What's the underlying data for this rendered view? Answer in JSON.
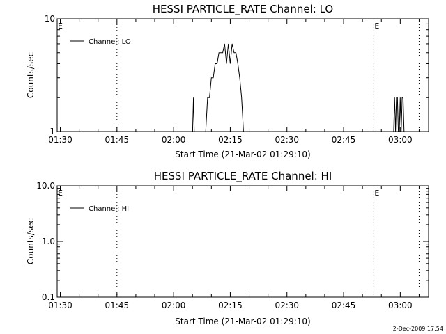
{
  "chart_data": [
    {
      "type": "line",
      "title": "HESSI PARTICLE_RATE Channel: LO",
      "xlabel": "Start Time (21-Mar-02 01:29:10)",
      "ylabel": "Counts/sec",
      "yscale": "log",
      "ylim": [
        1,
        10
      ],
      "xlim": [
        "01:29:10",
        "03:07:30"
      ],
      "x_ticks": [
        "01:30",
        "01:45",
        "02:00",
        "02:15",
        "02:30",
        "02:45",
        "03:00"
      ],
      "y_ticks": [
        "1",
        "10"
      ],
      "legend": {
        "position": "top-left",
        "entries": [
          "Channel: LO"
        ]
      },
      "markers": [
        {
          "label": "E",
          "time": "01:29:10"
        },
        {
          "label": "",
          "time": "01:45:00"
        },
        {
          "label": "E",
          "time": "02:53:00"
        },
        {
          "label": "",
          "time": "03:05:00"
        }
      ],
      "series": [
        {
          "name": "Channel: LO",
          "points": [
            [
              "02:05:00",
              0.9
            ],
            [
              "02:05:15",
              2.0
            ],
            [
              "02:05:30",
              0.9
            ],
            [
              "02:06:30",
              0.9
            ],
            [
              "02:06:45",
              1.0
            ],
            [
              "02:07:30",
              1.0
            ],
            [
              "02:08:30",
              1.0
            ],
            [
              "02:09:00",
              2.0
            ],
            [
              "02:09:30",
              2.0
            ],
            [
              "02:10:00",
              3.0
            ],
            [
              "02:10:30",
              3.0
            ],
            [
              "02:11:00",
              4.0
            ],
            [
              "02:11:30",
              4.0
            ],
            [
              "02:12:00",
              5.0
            ],
            [
              "02:12:30",
              5.0
            ],
            [
              "02:13:00",
              5.0
            ],
            [
              "02:13:30",
              6.0
            ],
            [
              "02:14:00",
              4.0
            ],
            [
              "02:14:30",
              6.0
            ],
            [
              "02:15:00",
              4.0
            ],
            [
              "02:15:30",
              6.0
            ],
            [
              "02:16:00",
              5.0
            ],
            [
              "02:16:30",
              5.0
            ],
            [
              "02:17:00",
              4.0
            ],
            [
              "02:17:30",
              3.0
            ],
            [
              "02:18:00",
              2.0
            ],
            [
              "02:18:30",
              1.0
            ],
            [
              "02:19:00",
              0.9
            ],
            [
              "02:58:00",
              0.9
            ],
            [
              "02:58:15",
              1.0
            ],
            [
              "02:58:30",
              2.0
            ],
            [
              "02:58:45",
              1.0
            ],
            [
              "02:59:00",
              2.0
            ],
            [
              "02:59:15",
              2.0
            ],
            [
              "02:59:30",
              1.0
            ],
            [
              "02:59:45",
              1.0
            ],
            [
              "03:00:00",
              2.0
            ],
            [
              "03:00:15",
              1.0
            ],
            [
              "03:00:30",
              2.0
            ],
            [
              "03:00:45",
              2.0
            ],
            [
              "03:01:00",
              1.0
            ],
            [
              "03:01:15",
              0.9
            ]
          ]
        }
      ]
    },
    {
      "type": "line",
      "title": "HESSI PARTICLE_RATE Channel: HI",
      "xlabel": "Start Time (21-Mar-02 01:29:10)",
      "ylabel": "Counts/sec",
      "yscale": "log",
      "ylim": [
        0.1,
        10
      ],
      "xlim": [
        "01:29:10",
        "03:07:30"
      ],
      "x_ticks": [
        "01:30",
        "01:45",
        "02:00",
        "02:15",
        "02:30",
        "02:45",
        "03:00"
      ],
      "y_ticks": [
        "0.1",
        "1.0",
        "10.0"
      ],
      "legend": {
        "position": "top-left",
        "entries": [
          "Channel: HI"
        ]
      },
      "markers": [
        {
          "label": "E",
          "time": "01:29:10"
        },
        {
          "label": "",
          "time": "01:45:00"
        },
        {
          "label": "E",
          "time": "02:53:00"
        },
        {
          "label": "",
          "time": "03:05:00"
        }
      ],
      "series": [
        {
          "name": "Channel: HI",
          "points": []
        }
      ]
    }
  ],
  "footer": {
    "timestamp": "2-Dec-2009 17:54"
  }
}
